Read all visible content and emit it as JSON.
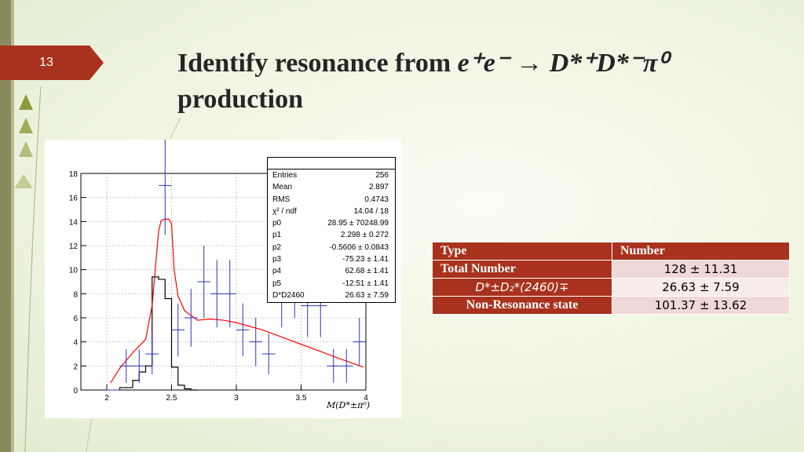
{
  "slide": {
    "number": "13"
  },
  "title": {
    "prefix": "Identify resonance from ",
    "math": "e⁺e⁻ → D*⁺D*⁻π⁰",
    "line2": "production"
  },
  "stats": [
    {
      "label": "Entries",
      "value": "256"
    },
    {
      "label": "Mean",
      "value": "2.897"
    },
    {
      "label": "RMS",
      "value": "0.4743"
    },
    {
      "label": "χ² / ndf",
      "value": "14.04 / 18"
    },
    {
      "label": "p0",
      "value": "28.95 ± 70248.99"
    },
    {
      "label": "p1",
      "value": "2.298 ± 0.272"
    },
    {
      "label": "p2",
      "value": "-0.5606 ± 0.0843"
    },
    {
      "label": "p3",
      "value": "-75.23 ± 1.41"
    },
    {
      "label": "p4",
      "value": "62.68 ± 1.41"
    },
    {
      "label": "p5",
      "value": "-12.51 ± 1.41"
    },
    {
      "label": "D*D2460",
      "value": "26.63 ± 7.59"
    }
  ],
  "chart_data": {
    "type": "scatter",
    "xlabel": "M(D*±π⁰)",
    "xlim": [
      1.8,
      4.0
    ],
    "ylim": [
      0,
      18
    ],
    "xticks": [
      2,
      2.5,
      3,
      3.5,
      4
    ],
    "yticks": [
      0,
      2,
      4,
      6,
      8,
      10,
      12,
      14,
      16,
      18
    ],
    "grid": true,
    "series": [
      {
        "kind": "data-points",
        "x": [
          2.05,
          2.15,
          2.25,
          2.35,
          2.45,
          2.55,
          2.65,
          2.75,
          2.85,
          2.95,
          3.05,
          3.15,
          3.25,
          3.35,
          3.45,
          3.55,
          3.65,
          3.75,
          3.85,
          3.95
        ],
        "y": [
          0,
          2,
          2,
          3,
          17,
          5,
          6,
          9,
          8,
          8,
          5,
          4,
          3,
          8,
          9,
          7,
          7,
          2,
          2,
          4
        ],
        "err": [
          0,
          1.4,
          1.4,
          1.7,
          4.1,
          2.2,
          2.4,
          3,
          2.8,
          2.8,
          2.2,
          2,
          1.7,
          2.8,
          3,
          2.6,
          2.6,
          1.4,
          1.4,
          2
        ]
      },
      {
        "kind": "fit-curve",
        "x": [
          2.03,
          2.1,
          2.2,
          2.3,
          2.35,
          2.4,
          2.42,
          2.45,
          2.48,
          2.5,
          2.52,
          2.55,
          2.6,
          2.7,
          2.8,
          2.9,
          3.0,
          3.2,
          3.4,
          3.6,
          3.8,
          3.98
        ],
        "y": [
          0.6,
          1.8,
          3.1,
          4.2,
          7,
          13.2,
          14.1,
          14.2,
          14.2,
          13.8,
          10,
          7.8,
          6.6,
          5.8,
          5.9,
          5.8,
          5.6,
          5,
          4.2,
          3.4,
          2.6,
          1.9
        ]
      },
      {
        "kind": "signal-histogram",
        "edges": [
          2.1,
          2.2,
          2.25,
          2.3,
          2.35,
          2.4,
          2.45,
          2.5,
          2.55,
          2.6,
          2.65,
          2.7
        ],
        "values": [
          0.2,
          0.8,
          1.5,
          2,
          9.4,
          9.2,
          7.6,
          1.9,
          0.4,
          0.1,
          0
        ]
      }
    ]
  },
  "table": {
    "headers": [
      "Type",
      "Number"
    ],
    "rows": [
      {
        "type": "Total Number",
        "number": "128 ± 11.31"
      },
      {
        "type": "D*±D₂*(2460)∓",
        "number": "26.63 ± 7.59"
      },
      {
        "type": "Non-Resonance state",
        "number": "101.37 ± 13.62"
      }
    ]
  },
  "colors": {
    "accent": "#a8321d",
    "fit": "#ff0000",
    "points": "#3030c0"
  }
}
